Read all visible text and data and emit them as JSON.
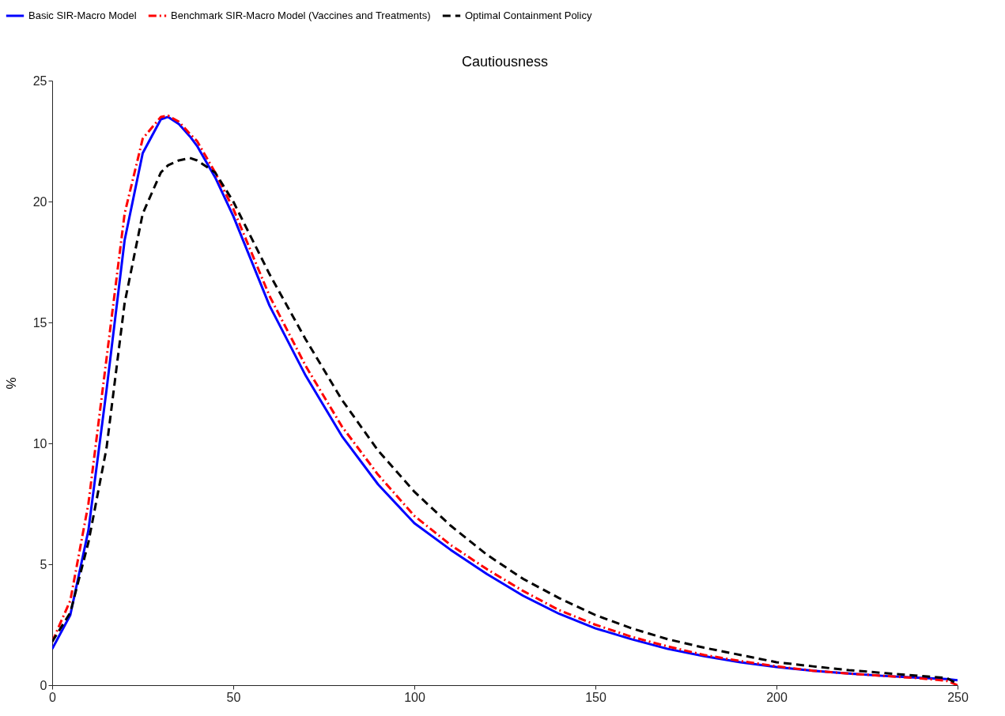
{
  "chart_data": {
    "type": "line",
    "title": "Cautiousness",
    "ylabel": "%",
    "xlim": [
      0,
      250
    ],
    "xticks": [
      0,
      50,
      100,
      150,
      200,
      250
    ],
    "ylim": [
      0,
      25
    ],
    "yticks": [
      0,
      5,
      10,
      15,
      20,
      25
    ],
    "grid": false,
    "legend": "top",
    "marker": "none",
    "x": [
      0,
      5,
      10,
      15,
      20,
      25,
      30,
      32,
      35,
      38,
      40,
      45,
      50,
      60,
      70,
      80,
      90,
      100,
      110,
      120,
      130,
      140,
      150,
      160,
      170,
      180,
      190,
      200,
      210,
      220,
      230,
      240,
      247,
      250
    ],
    "series": [
      {
        "name": "Basic SIR-Macro Model",
        "color": "#0000ff",
        "line_style": "solid",
        "values": [
          1.5,
          2.9,
          6.4,
          12.2,
          18.4,
          22.0,
          23.4,
          23.5,
          23.2,
          22.7,
          22.3,
          21.0,
          19.4,
          15.7,
          12.8,
          10.3,
          8.3,
          6.7,
          5.6,
          4.6,
          3.7,
          2.95,
          2.35,
          1.9,
          1.5,
          1.2,
          0.95,
          0.75,
          0.6,
          0.48,
          0.38,
          0.3,
          0.25,
          0.2
        ]
      },
      {
        "name": "Benchmark SIR-Macro Model (Vaccines and Treatments)",
        "color": "#ff0000",
        "line_style": "dashdot",
        "values": [
          1.8,
          3.5,
          7.5,
          13.5,
          19.5,
          22.6,
          23.5,
          23.55,
          23.3,
          22.8,
          22.5,
          21.2,
          19.7,
          16.1,
          13.2,
          10.7,
          8.7,
          7.0,
          5.8,
          4.8,
          3.9,
          3.1,
          2.5,
          2.0,
          1.6,
          1.25,
          1.0,
          0.78,
          0.6,
          0.48,
          0.38,
          0.28,
          0.18,
          0.0
        ]
      },
      {
        "name": "Optimal Containment Policy",
        "color": "#000000",
        "line_style": "dashed",
        "values": [
          1.8,
          3.0,
          5.9,
          9.8,
          15.8,
          19.5,
          21.2,
          21.5,
          21.7,
          21.8,
          21.7,
          21.2,
          20.0,
          17.0,
          14.3,
          11.8,
          9.7,
          8.0,
          6.6,
          5.4,
          4.4,
          3.6,
          2.9,
          2.35,
          1.9,
          1.55,
          1.25,
          0.95,
          0.78,
          0.62,
          0.5,
          0.38,
          0.3,
          0.05
        ]
      }
    ]
  }
}
